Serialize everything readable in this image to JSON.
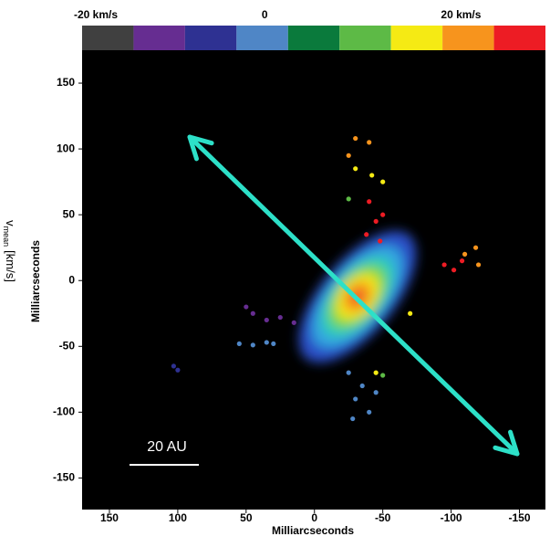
{
  "chart_data": {
    "type": "scatter",
    "x_label": "Milliarcseconds",
    "y_label": "Milliarcseconds",
    "xlim": [
      170,
      -169
    ],
    "ylim": [
      -174,
      175
    ],
    "xticks": [
      150,
      100,
      50,
      0,
      -50,
      -100,
      -150
    ],
    "yticks": [
      150,
      100,
      50,
      0,
      -50,
      -100,
      -150
    ],
    "scale_bar_label": "20 AU",
    "colorbar": {
      "colors": [
        "#404040",
        "#662d91",
        "#2e3192",
        "#4f86c6",
        "#0a7a3c",
        "#5dba46",
        "#f5ea14",
        "#f7941d",
        "#ed1c24"
      ],
      "lim": [
        -18.6,
        28.6
      ],
      "ticks": [
        {
          "value": -20,
          "label": "-20 km/s"
        },
        {
          "value": 0,
          "label": "0"
        },
        {
          "value": 20,
          "label": "20 km/s"
        }
      ],
      "label_symbol": "v",
      "label_subscript": "mean",
      "label_unit": "[km/s]"
    },
    "series": [
      {
        "color": "#f7941d",
        "x": [
          -30,
          -40,
          -25,
          -110,
          -118,
          -120
        ],
        "y": [
          108,
          105,
          95,
          20,
          25,
          12
        ]
      },
      {
        "color": "#f5ea14",
        "x": [
          -30,
          -42,
          -50,
          -45,
          -70
        ],
        "y": [
          85,
          80,
          75,
          -70,
          -25
        ]
      },
      {
        "color": "#ed1c24",
        "x": [
          -40,
          -45,
          -38,
          -50,
          -48,
          -95,
          -102,
          -108
        ],
        "y": [
          60,
          45,
          35,
          50,
          30,
          12,
          8,
          15
        ]
      },
      {
        "color": "#5dba46",
        "x": [
          -25,
          -50
        ],
        "y": [
          62,
          -72
        ]
      },
      {
        "color": "#662d91",
        "x": [
          45,
          35,
          25,
          15,
          50
        ],
        "y": [
          -25,
          -30,
          -28,
          -32,
          -20
        ]
      },
      {
        "color": "#4f86c6",
        "x": [
          55,
          45,
          35,
          30,
          -25,
          -35,
          -30,
          -40,
          -28,
          -45
        ],
        "y": [
          -48,
          -49,
          -47,
          -48,
          -70,
          -80,
          -90,
          -100,
          -105,
          -85
        ]
      },
      {
        "color": "#2e3192",
        "x": [
          103,
          100
        ],
        "y": [
          -65,
          -68
        ]
      }
    ]
  }
}
